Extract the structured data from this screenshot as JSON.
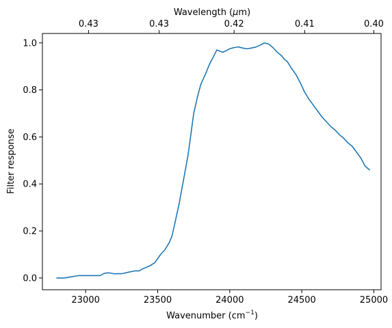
{
  "chart_data": {
    "type": "line",
    "title": "",
    "xlabel": "Wavenumber (cm",
    "xlabel_sup": "−1",
    "xlabel_suffix": ")",
    "ylabel": "Filter response",
    "top_xlabel": "Wavelength (",
    "top_xlabel_mu": "μ",
    "top_xlabel_suffix": "m)",
    "xlim": [
      22700,
      25050
    ],
    "ylim": [
      -0.05,
      1.04
    ],
    "x_ticks": [
      23000,
      23500,
      24000,
      24500,
      25000
    ],
    "x_tick_labels": [
      "23000",
      "23500",
      "24000",
      "24500",
      "25000"
    ],
    "y_ticks": [
      0.0,
      0.2,
      0.4,
      0.6,
      0.8,
      1.0
    ],
    "y_tick_labels": [
      "0.0",
      "0.2",
      "0.4",
      "0.6",
      "0.8",
      "1.0"
    ],
    "top_ticks": [
      23020,
      23510,
      24030,
      24520,
      25000
    ],
    "top_tick_labels": [
      "0.43",
      "0.43",
      "0.42",
      "0.41",
      "0.40"
    ],
    "grid": false,
    "series": [
      {
        "color": "#1f77b4",
        "x": [
          22800,
          22850,
          22900,
          22950,
          23000,
          23050,
          23100,
          23130,
          23160,
          23200,
          23250,
          23300,
          23340,
          23370,
          23400,
          23440,
          23480,
          23520,
          23550,
          23580,
          23600,
          23620,
          23650,
          23680,
          23710,
          23750,
          23780,
          23800,
          23830,
          23860,
          23890,
          23910,
          23930,
          23950,
          23970,
          24000,
          24030,
          24060,
          24090,
          24120,
          24150,
          24180,
          24210,
          24240,
          24270,
          24300,
          24330,
          24360,
          24380,
          24400,
          24430,
          24460,
          24490,
          24520,
          24550,
          24580,
          24610,
          24640,
          24670,
          24700,
          24730,
          24760,
          24790,
          24820,
          24850,
          24880,
          24910,
          24940,
          24970
        ],
        "y": [
          0.0,
          0.0,
          0.005,
          0.01,
          0.01,
          0.01,
          0.01,
          0.02,
          0.022,
          0.018,
          0.018,
          0.025,
          0.03,
          0.03,
          0.04,
          0.05,
          0.065,
          0.1,
          0.12,
          0.15,
          0.18,
          0.235,
          0.32,
          0.42,
          0.52,
          0.7,
          0.78,
          0.825,
          0.865,
          0.91,
          0.945,
          0.97,
          0.965,
          0.96,
          0.965,
          0.975,
          0.98,
          0.983,
          0.978,
          0.975,
          0.978,
          0.982,
          0.99,
          1.0,
          0.995,
          0.98,
          0.96,
          0.945,
          0.93,
          0.92,
          0.89,
          0.865,
          0.83,
          0.79,
          0.76,
          0.735,
          0.71,
          0.685,
          0.665,
          0.645,
          0.63,
          0.61,
          0.595,
          0.575,
          0.56,
          0.535,
          0.51,
          0.475,
          0.46
        ]
      }
    ]
  }
}
